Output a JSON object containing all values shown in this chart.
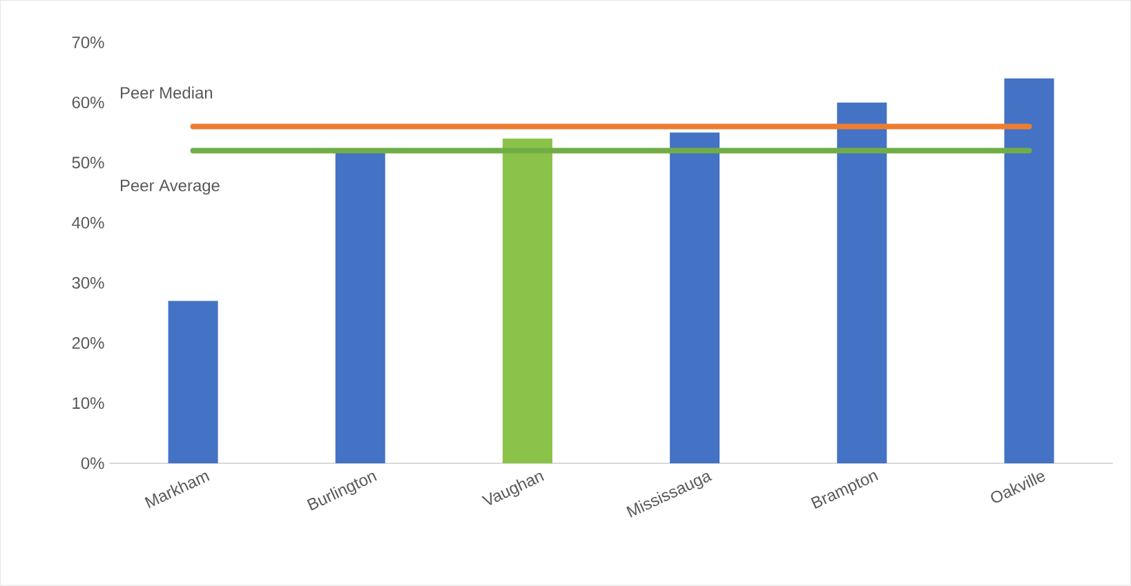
{
  "chart_data": {
    "type": "bar",
    "categories": [
      "Markham",
      "Burlington",
      "Vaughan",
      "Mississauga",
      "Brampton",
      "Oakville"
    ],
    "values": [
      27,
      52,
      54,
      55,
      60,
      64
    ],
    "colors": [
      "#4472c4",
      "#4472c4",
      "#8bc34a",
      "#4472c4",
      "#4472c4",
      "#4472c4"
    ],
    "ylim": [
      0,
      70
    ],
    "yticks": [
      {
        "value": 0,
        "label": "0%"
      },
      {
        "value": 10,
        "label": "10%"
      },
      {
        "value": 20,
        "label": "20%"
      },
      {
        "value": 30,
        "label": "30%"
      },
      {
        "value": 40,
        "label": "40%"
      },
      {
        "value": 50,
        "label": "50%"
      },
      {
        "value": 60,
        "label": "60%"
      },
      {
        "value": 70,
        "label": "70%"
      }
    ],
    "ref_lines": [
      {
        "axis": "y",
        "value": 56,
        "label": "Peer Median",
        "color": "#ed7d31"
      },
      {
        "axis": "y",
        "value": 52,
        "label": "Peer Average",
        "color": "#70ad47"
      }
    ]
  }
}
